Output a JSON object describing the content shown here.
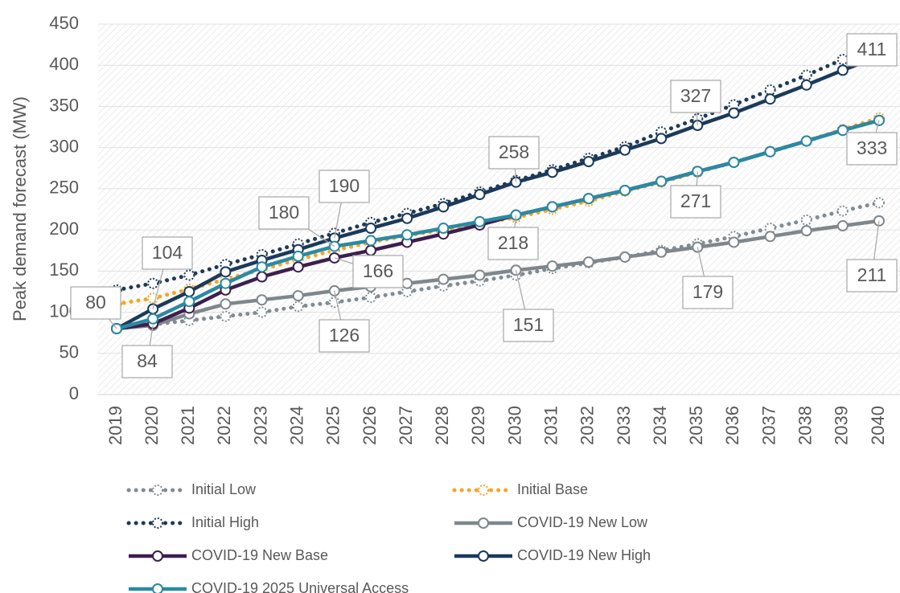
{
  "chart_data": {
    "type": "line",
    "y_label": "Peak demand forecast (MW)",
    "categories": [
      "2019",
      "2020",
      "2021",
      "2022",
      "2023",
      "2024",
      "2025",
      "2026",
      "2027",
      "2028",
      "2029",
      "2030",
      "2031",
      "2032",
      "2033",
      "2034",
      "2035",
      "2036",
      "2037",
      "2038",
      "2039",
      "2040"
    ],
    "ylim": [
      0,
      450
    ],
    "yticks": [
      0,
      50,
      100,
      150,
      200,
      250,
      300,
      350,
      400,
      450
    ],
    "series": [
      {
        "name": "Initial Low",
        "color": "#808b92",
        "line_style": "dotted",
        "values": [
          80,
          85,
          90,
          95,
          100,
          107,
          112,
          118,
          125,
          132,
          138,
          145,
          153,
          160,
          167,
          175,
          183,
          192,
          202,
          212,
          223,
          233
        ]
      },
      {
        "name": "Initial Base",
        "color": "#f5a623",
        "line_style": "dotted",
        "values": [
          110,
          117,
          128,
          140,
          152,
          164,
          175,
          185,
          193,
          200,
          208,
          215,
          225,
          235,
          247,
          258,
          270,
          282,
          295,
          308,
          322,
          336
        ]
      },
      {
        "name": "Initial High",
        "color": "#1e3a56",
        "line_style": "dotted",
        "values": [
          127,
          135,
          145,
          158,
          170,
          183,
          196,
          209,
          220,
          232,
          246,
          260,
          273,
          287,
          301,
          319,
          335,
          352,
          370,
          388,
          407,
          420
        ]
      },
      {
        "name": "COVID-19 New Low",
        "color": "#7f878c",
        "line_style": "solid",
        "values": [
          80,
          84,
          98,
          110,
          115,
          120,
          126,
          131,
          135,
          140,
          145,
          151,
          156,
          161,
          167,
          173,
          179,
          185,
          192,
          199,
          205,
          211
        ]
      },
      {
        "name": "COVID-19 New Base",
        "color": "#3d1f4d",
        "line_style": "solid",
        "values": [
          80,
          86,
          105,
          127,
          143,
          155,
          166,
          175,
          185,
          195,
          206,
          218,
          228,
          238,
          248,
          259,
          271,
          282,
          295,
          308,
          321,
          333
        ]
      },
      {
        "name": "COVID-19 New High",
        "color": "#1b3a5a",
        "line_style": "solid",
        "values": [
          80,
          104,
          125,
          149,
          163,
          176,
          190,
          202,
          214,
          228,
          243,
          258,
          270,
          283,
          297,
          311,
          327,
          342,
          359,
          376,
          394,
          411
        ]
      },
      {
        "name": "COVID-19 2025 Universal Access",
        "color": "#2a8aa3",
        "line_style": "solid",
        "values": [
          80,
          92,
          113,
          135,
          155,
          168,
          180,
          187,
          194,
          202,
          210,
          218,
          228,
          238,
          248,
          259,
          271,
          282,
          295,
          308,
          321,
          333
        ]
      }
    ]
  }
}
